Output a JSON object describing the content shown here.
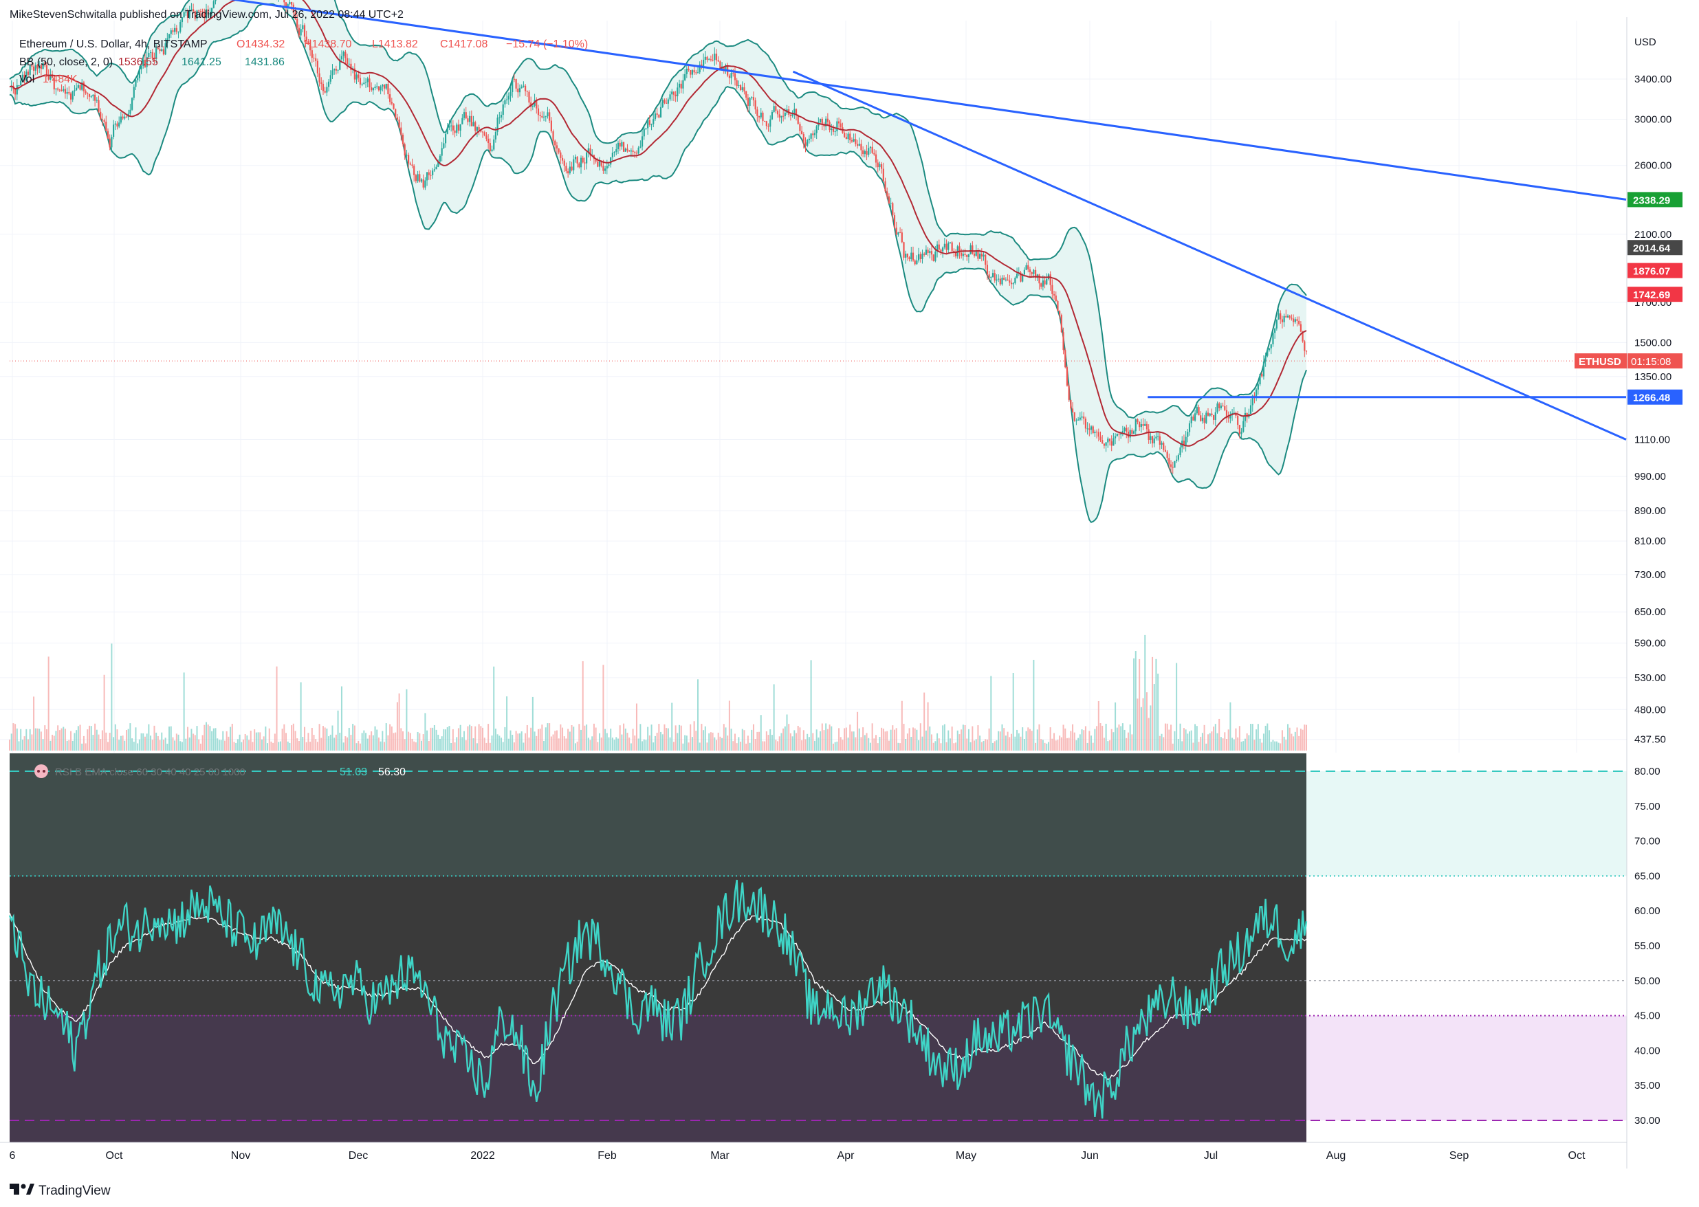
{
  "header": {
    "publisher_line": "MikeStevenSchwitalla published on TradingView.com, Jul 26, 2022 08:44 UTC+2",
    "symbol_line": "Ethereum / U.S. Dollar, 4h, BITSTAMP",
    "ohlc": {
      "open": "O1434.32",
      "high": "H1438.70",
      "low": "L1413.82",
      "close": "C1417.08",
      "change": "−15.74 (−1.10%)"
    },
    "bb_line": "BB (50, close, 2, 0)",
    "bb_values": [
      "1536.55",
      "1641.25",
      "1431.86"
    ],
    "vol_line": "Vol",
    "vol_value": "1.484K"
  },
  "rsi_header": {
    "label": "RSI B EMA close 60 30 40 40 25 60 1000",
    "values": [
      "51.03",
      "56.30"
    ]
  },
  "footer": {
    "brand": "TradingView"
  },
  "colors": {
    "bb_band": "#1b8a80",
    "bb_fill": "#e6f5f3",
    "bb_basis": "#b22833",
    "candle_up": "#26a69a",
    "candle_down": "#ef5350",
    "trendline": "#2962ff",
    "rsi": "#3fd5c7",
    "rsi_ma": "#ffffff",
    "rsi_bg_top": "#404d4b",
    "rsi_bg_mid": "#3a3a3a",
    "rsi_bg_bottom": "#45394d",
    "rsi_band_teal": "#36c9c0",
    "rsi_band_purple": "#9c27b0"
  },
  "chart_data": [
    {
      "type": "candlestick",
      "title": "Ethereum / U.S. Dollar, 4h, BITSTAMP",
      "currency": "USD",
      "x_ticks": [
        "6",
        "Oct",
        "Nov",
        "Dec",
        "2022",
        "Feb",
        "Mar",
        "Apr",
        "May",
        "Jun",
        "Jul",
        "Aug",
        "Sep",
        "Oct"
      ],
      "y_ticks": [
        "3400.00",
        "3000.00",
        "2600.00",
        "2100.00",
        "1700.00",
        "1500.00",
        "1350.00",
        "1110.00",
        "990.00",
        "890.00",
        "810.00",
        "730.00",
        "650.00",
        "590.00",
        "530.00",
        "480.00",
        "437.50"
      ],
      "scale": "log",
      "ylim": [
        430,
        4800
      ],
      "price_path": [
        [
          0,
          3280
        ],
        [
          3,
          3600
        ],
        [
          5,
          3100
        ],
        [
          7,
          3250
        ],
        [
          9,
          2900
        ],
        [
          11,
          3300
        ],
        [
          13,
          3650
        ],
        [
          15,
          3950
        ],
        [
          17,
          4150
        ],
        [
          19,
          4400
        ],
        [
          21,
          4700
        ],
        [
          23,
          4500
        ],
        [
          25,
          4400
        ],
        [
          26,
          4100
        ],
        [
          27,
          3700
        ],
        [
          28,
          3250
        ],
        [
          30,
          3600
        ],
        [
          32,
          3250
        ],
        [
          34,
          3150
        ],
        [
          36,
          2500
        ],
        [
          37,
          2450
        ],
        [
          39,
          2900
        ],
        [
          41,
          3050
        ],
        [
          43,
          2800
        ],
        [
          45,
          3400
        ],
        [
          46,
          3200
        ],
        [
          48,
          3000
        ],
        [
          50,
          2650
        ],
        [
          52,
          2750
        ],
        [
          53,
          2650
        ],
        [
          55,
          2700
        ],
        [
          57,
          2900
        ],
        [
          59,
          3200
        ],
        [
          61,
          3400
        ],
        [
          63,
          3500
        ],
        [
          64,
          3450
        ],
        [
          66,
          3250
        ],
        [
          68,
          3050
        ],
        [
          70,
          2950
        ],
        [
          72,
          2800
        ],
        [
          74,
          2950
        ],
        [
          76,
          2900
        ],
        [
          78,
          2700
        ],
        [
          80,
          2000
        ],
        [
          82,
          1950
        ],
        [
          84,
          2000
        ],
        [
          86,
          2050
        ],
        [
          88,
          1850
        ],
        [
          90,
          1800
        ],
        [
          92,
          1820
        ],
        [
          93,
          1800
        ],
        [
          94,
          1600
        ],
        [
          95,
          1250
        ],
        [
          97,
          1100
        ],
        [
          98,
          1040
        ],
        [
          100,
          1130
        ],
        [
          101,
          1200
        ],
        [
          102,
          1100
        ],
        [
          104,
          1050
        ],
        [
          106,
          1180
        ],
        [
          108,
          1220
        ],
        [
          110,
          1150
        ],
        [
          111,
          1200
        ],
        [
          112,
          1350
        ],
        [
          113,
          1550
        ],
        [
          114,
          1600
        ],
        [
          115,
          1550
        ],
        [
          116,
          1417
        ]
      ],
      "current_price_label": "ETHUSD",
      "countdown": "01:15:08",
      "price_labels": [
        {
          "value": "2338.29",
          "color": "#18a034"
        },
        {
          "value": "2014.64",
          "color": "#474747"
        },
        {
          "value": "1876.07",
          "color": "#f23645"
        },
        {
          "value": "1742.69",
          "color": "#f23645"
        },
        {
          "value": "1266.48",
          "color": "#2962ff"
        }
      ],
      "trendlines": [
        {
          "from": [
            "2021-09-24",
            4800
          ],
          "to": [
            "2022-10-20",
            2338.29
          ]
        },
        {
          "from": [
            "2022-04-01",
            3480
          ],
          "to": [
            "2022-10-20",
            1110
          ]
        },
        {
          "from": [
            "2022-06-26",
            1266.48
          ],
          "to": [
            "2022-10-20",
            1266.48
          ]
        }
      ]
    },
    {
      "type": "line",
      "title": "RSI",
      "y_ticks": [
        "80.00",
        "75.00",
        "70.00",
        "65.00",
        "60.00",
        "55.00",
        "50.00",
        "45.00",
        "40.00",
        "35.00",
        "30.00"
      ],
      "ylim": [
        27.5,
        81.5
      ],
      "levels": {
        "upper_dashed": 80,
        "upper_dotted": 65,
        "middle": 50,
        "lower_dotted": 45,
        "lower_dashed": 30
      },
      "series": [
        {
          "name": "RSI",
          "values": [
            61,
            50,
            47,
            45,
            40,
            48,
            55,
            58,
            57,
            60,
            58,
            60,
            61,
            59,
            57,
            55,
            58,
            56,
            52,
            48,
            49,
            50,
            47,
            48,
            51,
            50,
            44,
            40,
            38,
            35,
            45,
            42,
            33,
            45,
            52,
            57,
            55,
            51,
            45,
            47,
            44,
            45,
            52,
            57,
            61,
            62,
            60,
            58,
            52,
            45,
            47,
            44,
            47,
            50,
            47,
            44,
            40,
            37,
            38,
            42,
            41,
            43,
            44,
            46,
            41,
            38,
            33,
            34,
            40,
            44,
            46,
            48,
            45,
            48,
            52,
            54,
            58,
            59,
            55,
            58
          ]
        },
        {
          "name": "RSI-based MA",
          "values": [
            60,
            54,
            49,
            46,
            44,
            47,
            52,
            55,
            56,
            58,
            58,
            59,
            59,
            58,
            57,
            56,
            56,
            55,
            53,
            50,
            49,
            49,
            48,
            48,
            49,
            49,
            46,
            43,
            41,
            39,
            41,
            41,
            38,
            41,
            46,
            51,
            53,
            52,
            49,
            48,
            46,
            46,
            48,
            52,
            56,
            59,
            59,
            58,
            55,
            50,
            48,
            46,
            46,
            47,
            47,
            45,
            43,
            40,
            39,
            40,
            40,
            41,
            42,
            44,
            42,
            40,
            37,
            36,
            38,
            41,
            43,
            45,
            45,
            46,
            49,
            51,
            54,
            56,
            56,
            56
          ]
        }
      ]
    }
  ]
}
